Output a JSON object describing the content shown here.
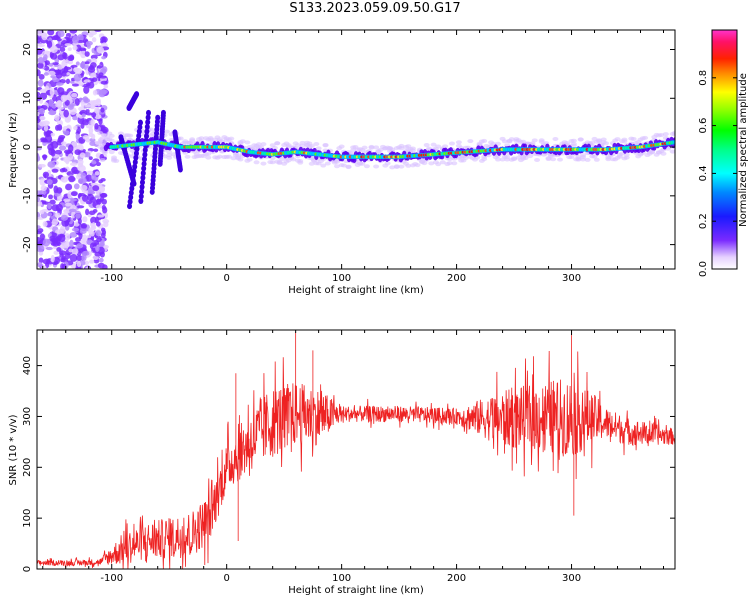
{
  "figure_title": "S133.2023.059.09.50.G17",
  "colors": {
    "snr_line": "#ee2222",
    "axes": "#000000"
  },
  "chart_data": [
    {
      "type": "heatmap",
      "title": "S133.2023.059.09.50.G17",
      "xlabel": "Height of straight line (km)",
      "ylabel": "Frequency (Hz)",
      "xlim": [
        -165,
        390
      ],
      "ylim": [
        -25,
        24
      ],
      "xticks": [
        -100,
        0,
        100,
        200,
        300
      ],
      "yticks": [
        -20,
        -10,
        0,
        10,
        20
      ],
      "x_tick_labels": [
        "-100",
        "0",
        "100",
        "200",
        "300"
      ],
      "y_tick_labels": [
        "-20",
        "-10",
        "0",
        "10",
        "20"
      ],
      "colorbar": {
        "label": "Normalized spectral amplitude",
        "ticks": [
          0.0,
          0.2,
          0.4,
          0.6,
          0.8
        ],
        "tick_labels": [
          "0.0",
          "0.2",
          "0.4",
          "0.6",
          "0.8"
        ],
        "range": [
          0,
          1
        ],
        "colormap": "gist_ncar-like (white → violet → blue → cyan → green → yellow → red → pink)"
      },
      "ridge_frequency_hz": [
        {
          "x": -100,
          "f": 0
        },
        {
          "x": -80,
          "f": 0.5
        },
        {
          "x": -60,
          "f": 1
        },
        {
          "x": -40,
          "f": 0
        },
        {
          "x": -20,
          "f": 0
        },
        {
          "x": 0,
          "f": 0
        },
        {
          "x": 20,
          "f": -1
        },
        {
          "x": 40,
          "f": -1.5
        },
        {
          "x": 60,
          "f": -1
        },
        {
          "x": 80,
          "f": -1.5
        },
        {
          "x": 100,
          "f": -2
        },
        {
          "x": 120,
          "f": -2
        },
        {
          "x": 150,
          "f": -2
        },
        {
          "x": 180,
          "f": -1.5
        },
        {
          "x": 210,
          "f": -1
        },
        {
          "x": 240,
          "f": -0.5
        },
        {
          "x": 270,
          "f": -0.5
        },
        {
          "x": 300,
          "f": -0.5
        },
        {
          "x": 330,
          "f": -0.5
        },
        {
          "x": 360,
          "f": 0
        },
        {
          "x": 390,
          "f": 1
        }
      ],
      "grid": false
    },
    {
      "type": "line",
      "xlabel": "Height of straight line (km)",
      "ylabel": "SNR (10 * v/v)",
      "xlim": [
        -165,
        390
      ],
      "ylim": [
        0,
        470
      ],
      "xticks": [
        -100,
        0,
        100,
        200,
        300
      ],
      "yticks": [
        0,
        100,
        200,
        300,
        400
      ],
      "x_tick_labels": [
        "-100",
        "0",
        "100",
        "200",
        "300"
      ],
      "y_tick_labels": [
        "0",
        "100",
        "200",
        "300",
        "400"
      ],
      "series": [
        {
          "color": "#ee2222",
          "mean": [
            {
              "x": -165,
              "y": 12
            },
            {
              "x": -130,
              "y": 12
            },
            {
              "x": -110,
              "y": 14
            },
            {
              "x": -90,
              "y": 40
            },
            {
              "x": -70,
              "y": 55
            },
            {
              "x": -50,
              "y": 60
            },
            {
              "x": -30,
              "y": 70
            },
            {
              "x": -15,
              "y": 100
            },
            {
              "x": 0,
              "y": 200
            },
            {
              "x": 20,
              "y": 250
            },
            {
              "x": 40,
              "y": 290
            },
            {
              "x": 60,
              "y": 305
            },
            {
              "x": 80,
              "y": 300
            },
            {
              "x": 100,
              "y": 305
            },
            {
              "x": 150,
              "y": 305
            },
            {
              "x": 200,
              "y": 300
            },
            {
              "x": 240,
              "y": 295
            },
            {
              "x": 280,
              "y": 300
            },
            {
              "x": 320,
              "y": 295
            },
            {
              "x": 350,
              "y": 270
            },
            {
              "x": 390,
              "y": 260
            }
          ],
          "noise": [
            {
              "x": -165,
              "a": 6
            },
            {
              "x": -110,
              "a": 8
            },
            {
              "x": -90,
              "a": 40
            },
            {
              "x": -20,
              "a": 60
            },
            {
              "x": 0,
              "a": 60
            },
            {
              "x": 40,
              "a": 90
            },
            {
              "x": 80,
              "a": 70
            },
            {
              "x": 100,
              "a": 20
            },
            {
              "x": 200,
              "a": 20
            },
            {
              "x": 240,
              "a": 70
            },
            {
              "x": 300,
              "a": 100
            },
            {
              "x": 330,
              "a": 40
            },
            {
              "x": 390,
              "a": 20
            }
          ],
          "peaks": [
            {
              "x": 60,
              "y": 465
            },
            {
              "x": 300,
              "y": 470
            },
            {
              "x": 75,
              "y": 430
            },
            {
              "x": 8,
              "y": 385
            },
            {
              "x": 302,
              "y": 105
            },
            {
              "x": 10,
              "y": 55
            }
          ]
        }
      ],
      "grid": false
    }
  ]
}
